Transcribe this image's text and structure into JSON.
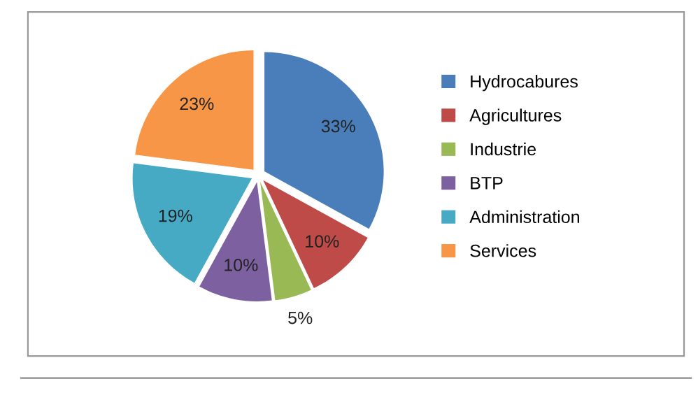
{
  "chart_data": {
    "type": "pie",
    "categories": [
      "Hydrocabures",
      "Agricultures",
      "Industrie",
      "BTP",
      "Administration",
      "Services"
    ],
    "values": [
      33,
      10,
      5,
      10,
      19,
      23
    ],
    "value_labels": [
      "33%",
      "10%",
      "5%",
      "10%",
      "19%",
      "23%"
    ],
    "colors": [
      "#4a7ebb",
      "#be4b48",
      "#98b954",
      "#7d60a0",
      "#46aac5",
      "#f79646"
    ],
    "legend": "right"
  }
}
